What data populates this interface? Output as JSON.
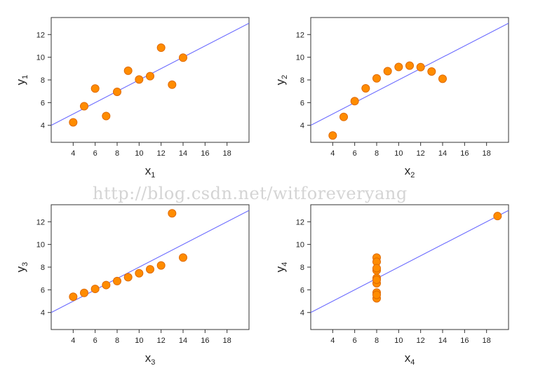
{
  "watermark": "http://blog.csdn.net/witforeveryang",
  "colors": {
    "point_fill": "#ff8c00",
    "point_stroke": "#e06a00",
    "fit_line": "#6b6bff",
    "axis": "#333333"
  },
  "chart_data": [
    {
      "type": "scatter",
      "xlabel": {
        "base": "x",
        "sub": "1"
      },
      "ylabel": {
        "base": "y",
        "sub": "1"
      },
      "xlim": [
        2,
        20
      ],
      "ylim": [
        2.5,
        13.5
      ],
      "xticks": [
        4,
        6,
        8,
        10,
        12,
        14,
        16,
        18
      ],
      "yticks": [
        4,
        6,
        8,
        10,
        12
      ],
      "x": [
        10,
        8,
        13,
        9,
        11,
        14,
        6,
        4,
        12,
        7,
        5
      ],
      "y": [
        8.04,
        6.95,
        7.58,
        8.81,
        8.33,
        9.96,
        7.24,
        4.26,
        10.84,
        4.82,
        5.68
      ],
      "fit": {
        "intercept": 3.0,
        "slope": 0.5
      }
    },
    {
      "type": "scatter",
      "xlabel": {
        "base": "x",
        "sub": "2"
      },
      "ylabel": {
        "base": "y",
        "sub": "2"
      },
      "xlim": [
        2,
        20
      ],
      "ylim": [
        2.5,
        13.5
      ],
      "xticks": [
        4,
        6,
        8,
        10,
        12,
        14,
        16,
        18
      ],
      "yticks": [
        4,
        6,
        8,
        10,
        12
      ],
      "x": [
        10,
        8,
        13,
        9,
        11,
        14,
        6,
        4,
        12,
        7,
        5
      ],
      "y": [
        9.14,
        8.14,
        8.74,
        8.77,
        9.26,
        8.1,
        6.13,
        3.1,
        9.13,
        7.26,
        4.74
      ],
      "fit": {
        "intercept": 3.0,
        "slope": 0.5
      }
    },
    {
      "type": "scatter",
      "xlabel": {
        "base": "x",
        "sub": "3"
      },
      "ylabel": {
        "base": "y",
        "sub": "3"
      },
      "xlim": [
        2,
        20
      ],
      "ylim": [
        2.5,
        13.5
      ],
      "xticks": [
        4,
        6,
        8,
        10,
        12,
        14,
        16,
        18
      ],
      "yticks": [
        4,
        6,
        8,
        10,
        12
      ],
      "x": [
        10,
        8,
        13,
        9,
        11,
        14,
        6,
        4,
        12,
        7,
        5
      ],
      "y": [
        7.46,
        6.77,
        12.74,
        7.11,
        7.81,
        8.84,
        6.08,
        5.39,
        8.15,
        6.42,
        5.73
      ],
      "fit": {
        "intercept": 3.0,
        "slope": 0.5
      }
    },
    {
      "type": "scatter",
      "xlabel": {
        "base": "x",
        "sub": "4"
      },
      "ylabel": {
        "base": "y",
        "sub": "4"
      },
      "xlim": [
        2,
        20
      ],
      "ylim": [
        2.5,
        13.5
      ],
      "xticks": [
        4,
        6,
        8,
        10,
        12,
        14,
        16,
        18
      ],
      "yticks": [
        4,
        6,
        8,
        10,
        12
      ],
      "x": [
        8,
        8,
        8,
        8,
        8,
        8,
        8,
        19,
        8,
        8,
        8
      ],
      "y": [
        6.58,
        5.76,
        7.71,
        8.84,
        8.47,
        7.04,
        5.25,
        12.5,
        5.56,
        7.91,
        6.89
      ],
      "fit": {
        "intercept": 3.0,
        "slope": 0.5
      }
    }
  ]
}
